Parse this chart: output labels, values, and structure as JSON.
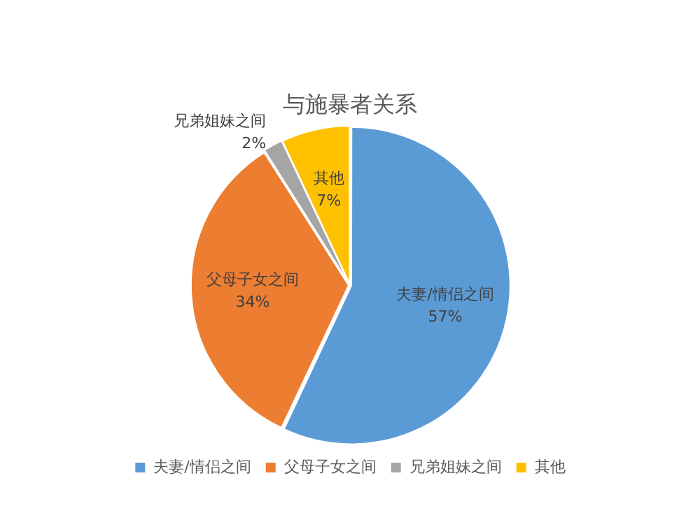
{
  "chart_data": {
    "type": "pie",
    "title": "与施暴者关系",
    "categories": [
      "夫妻/情侣之间",
      "父母子女之间",
      "兄弟姐妹之间",
      "其他"
    ],
    "values": [
      57,
      34,
      2,
      7
    ],
    "value_labels": [
      "57%",
      "34%",
      "2%",
      "7%"
    ],
    "colors": [
      "#5b9bd5",
      "#ed7d31",
      "#a5a5a5",
      "#ffc000"
    ],
    "legend": "bottom"
  }
}
